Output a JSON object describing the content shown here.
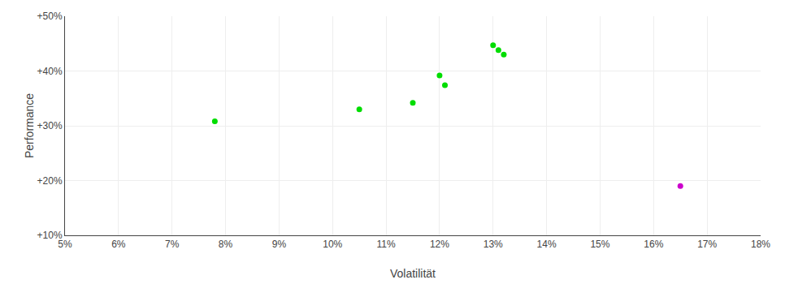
{
  "chart_data": {
    "type": "scatter",
    "xlabel": "Volatilität",
    "ylabel": "Performance",
    "series": [
      {
        "color": "#00dd00",
        "x": [
          0.13,
          0.131,
          0.132,
          0.12,
          0.121,
          0.115,
          0.105,
          0.078
        ],
        "values": [
          0.447,
          0.438,
          0.43,
          0.392,
          0.374,
          0.342,
          0.33,
          0.308
        ]
      },
      {
        "color": "#cc00cc",
        "x": [
          0.165
        ],
        "values": [
          0.19
        ]
      }
    ],
    "xlim": [
      0.05,
      0.18
    ],
    "ylim": [
      0.1,
      0.5
    ],
    "xticks": [
      {
        "value": 0.05,
        "label": "5%"
      },
      {
        "value": 0.06,
        "label": "6%"
      },
      {
        "value": 0.07,
        "label": "7%"
      },
      {
        "value": 0.08,
        "label": "8%"
      },
      {
        "value": 0.09,
        "label": "9%"
      },
      {
        "value": 0.1,
        "label": "10%"
      },
      {
        "value": 0.11,
        "label": "11%"
      },
      {
        "value": 0.12,
        "label": "12%"
      },
      {
        "value": 0.13,
        "label": "13%"
      },
      {
        "value": 0.14,
        "label": "14%"
      },
      {
        "value": 0.15,
        "label": "15%"
      },
      {
        "value": 0.16,
        "label": "16%"
      },
      {
        "value": 0.17,
        "label": "17%"
      },
      {
        "value": 0.18,
        "label": "18%"
      }
    ],
    "yticks": [
      {
        "value": 0.1,
        "label": "+10%"
      },
      {
        "value": 0.2,
        "label": "+20%"
      },
      {
        "value": 0.3,
        "label": "+30%"
      },
      {
        "value": 0.4,
        "label": "+40%"
      },
      {
        "value": 0.5,
        "label": "+50%"
      }
    ],
    "grid": true
  }
}
